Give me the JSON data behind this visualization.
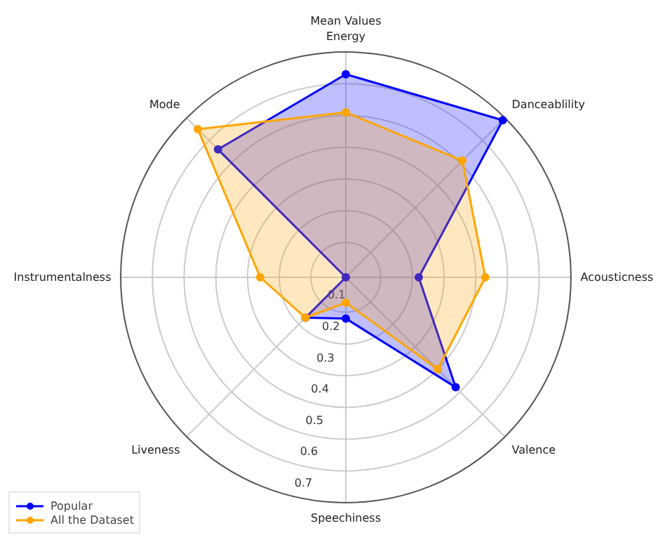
{
  "chart_data": {
    "type": "radar",
    "title": "Mean Values",
    "categories": [
      "Energy",
      "Danceablility",
      "Acousticness",
      "Valence",
      "Speechiness",
      "Liveness",
      "Instrumentalness",
      "Mode"
    ],
    "series": [
      {
        "name": "Popular",
        "color": "#0000ff",
        "values": [
          0.73,
          0.79,
          0.32,
          0.58,
          0.22,
          0.27,
          0.09,
          0.66
        ]
      },
      {
        "name": "All the Dataset",
        "color": "#ffa500",
        "values": [
          0.61,
          0.61,
          0.53,
          0.5,
          0.17,
          0.27,
          0.36,
          0.75
        ]
      }
    ],
    "ylim": [
      0.09,
      0.8
    ],
    "yticks": [
      0.1,
      0.2,
      0.3,
      0.4,
      0.5,
      0.6,
      0.7
    ],
    "grid": true,
    "legend": "bottom left",
    "marker": "circle",
    "line_style": "solid"
  }
}
